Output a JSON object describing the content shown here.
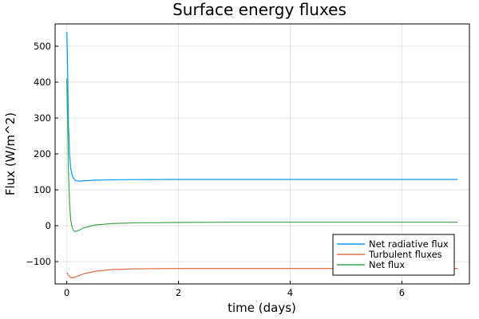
{
  "chart_data": {
    "type": "line",
    "title": "Surface energy fluxes",
    "xlabel": "time (days)",
    "ylabel": "Flux (W/m^2)",
    "xlim": [
      -0.21,
      7.21
    ],
    "ylim": [
      -162,
      562
    ],
    "xticks": [
      0,
      2,
      4,
      6
    ],
    "yticks": [
      -100,
      0,
      100,
      200,
      300,
      400,
      500
    ],
    "ytick_labels": [
      "−100",
      "0",
      "100",
      "200",
      "300",
      "400",
      "500"
    ],
    "grid": true,
    "legend_position": "bottom-right",
    "series": [
      {
        "name": "Net radiative flux",
        "color": "#009af9",
        "x": [
          0,
          0.01,
          0.02,
          0.03,
          0.05,
          0.07,
          0.1,
          0.15,
          0.2,
          0.3,
          0.5,
          0.8,
          1.2,
          2,
          3,
          4,
          5,
          6,
          7
        ],
        "y": [
          540,
          470,
          380,
          280,
          200,
          160,
          137,
          126,
          124,
          125,
          127,
          128,
          128.5,
          129,
          129,
          129,
          129,
          129,
          129
        ]
      },
      {
        "name": "Turbulent fluxes",
        "color": "#e26f46",
        "x": [
          0,
          0.02,
          0.05,
          0.08,
          0.12,
          0.2,
          0.3,
          0.5,
          0.8,
          1.2,
          1.6,
          2,
          3,
          4,
          5,
          6,
          7
        ],
        "y": [
          -130,
          -136,
          -142,
          -145,
          -144,
          -140,
          -134,
          -127,
          -122,
          -120,
          -119.5,
          -119,
          -119,
          -119,
          -119,
          -119,
          -119
        ]
      },
      {
        "name": "Net flux",
        "color": "#3da44d",
        "x": [
          0,
          0.01,
          0.02,
          0.03,
          0.05,
          0.07,
          0.1,
          0.13,
          0.16,
          0.2,
          0.3,
          0.5,
          0.8,
          1.2,
          2,
          3,
          4,
          5,
          6,
          7
        ],
        "y": [
          410,
          330,
          240,
          150,
          60,
          15,
          -8,
          -15,
          -16,
          -14,
          -6,
          2,
          6,
          8,
          9,
          10,
          10,
          10,
          10,
          10
        ]
      }
    ]
  }
}
